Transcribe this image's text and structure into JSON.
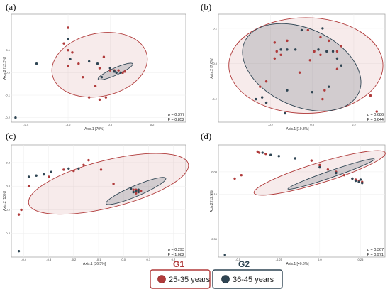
{
  "legend": {
    "g1": {
      "name": "G1",
      "label": "25-35 years",
      "color": "#b03a3a"
    },
    "g2": {
      "name": "G2",
      "label": "36-45 years",
      "color": "#2f4553"
    }
  },
  "chart_data": [
    {
      "type": "scatter",
      "panel": "(a)",
      "xlabel": "Axis.1  [70%]",
      "ylabel": "Axis.2  [12.2%]",
      "xlim": [
        -0.47,
        0.36
      ],
      "ylim": [
        -0.22,
        0.26
      ],
      "xticks": [
        "-0.4",
        "-0.2",
        "0.0",
        "0.2"
      ],
      "xtick_values": [
        -0.4,
        -0.2,
        0.0,
        0.2
      ],
      "yticks": [
        "0.1",
        "0.0",
        "-0.1",
        "-0.2"
      ],
      "ytick_values": [
        0.1,
        0.0,
        -0.1,
        -0.2
      ],
      "stats": [
        "p = 0.377",
        "F = 0.852"
      ],
      "ellipses": [
        {
          "group": "G1",
          "cx": -0.05,
          "cy": 0.035,
          "rx": 0.23,
          "ry": 0.14,
          "angle": 12
        },
        {
          "group": "G2",
          "cx": 0.025,
          "cy": 0.005,
          "rx": 0.09,
          "ry": 0.016,
          "angle": 24
        }
      ],
      "series": [
        {
          "name": "G1",
          "points": [
            [
              -0.2,
              0.2
            ],
            [
              -0.22,
              0.13
            ],
            [
              -0.18,
              0.09
            ],
            [
              -0.15,
              0.04
            ],
            [
              -0.2,
              0.03
            ],
            [
              -0.13,
              -0.02
            ],
            [
              -0.07,
              -0.06
            ],
            [
              -0.05,
              -0.12
            ],
            [
              -0.02,
              -0.11
            ],
            [
              -0.05,
              0.02
            ],
            [
              0.0,
              0.01
            ],
            [
              0.02,
              0.01
            ],
            [
              0.04,
              0.01
            ],
            [
              0.06,
              0.0
            ],
            [
              0.07,
              0.005
            ],
            [
              -0.1,
              -0.11
            ],
            [
              -0.03,
              0.07
            ],
            [
              -0.2,
              0.1
            ]
          ]
        },
        {
          "name": "G2",
          "points": [
            [
              -0.45,
              -0.2
            ],
            [
              -0.35,
              0.04
            ],
            [
              -0.2,
              0.15
            ],
            [
              -0.19,
              0.06
            ],
            [
              -0.1,
              0.05
            ],
            [
              -0.06,
              0.04
            ],
            [
              0.0,
              0.02
            ],
            [
              0.02,
              0.005
            ],
            [
              0.03,
              0.0
            ],
            [
              0.05,
              0.0
            ],
            [
              -0.04,
              -0.02
            ]
          ]
        }
      ]
    },
    {
      "type": "scatter",
      "panel": "(b)",
      "xlabel": "Axis.1  [19.8%]",
      "ylabel": "Axis.2  [7.6%]",
      "xlim": [
        -0.45,
        0.35
      ],
      "ylim": [
        -0.33,
        0.28
      ],
      "xticks": [
        "-0.2",
        "0.0",
        "0.2"
      ],
      "xtick_values": [
        -0.2,
        0.0,
        0.2
      ],
      "yticks": [
        "0.2",
        "0.0",
        "-0.2"
      ],
      "ytick_values": [
        0.2,
        0.0,
        -0.2
      ],
      "stats": [
        "p = 0.686",
        "F = 0.644"
      ],
      "ellipses": [
        {
          "group": "G1",
          "cx": -0.03,
          "cy": -0.01,
          "rx": 0.37,
          "ry": 0.27,
          "angle": 0
        },
        {
          "group": "G2",
          "cx": -0.05,
          "cy": -0.02,
          "rx": 0.3,
          "ry": 0.22,
          "angle": -24
        }
      ],
      "series": [
        {
          "name": "G1",
          "points": [
            [
              -0.02,
              0.19
            ],
            [
              0.04,
              0.15
            ],
            [
              0.08,
              0.13
            ],
            [
              -0.18,
              0.12
            ],
            [
              -0.12,
              0.13
            ],
            [
              0.12,
              0.07
            ],
            [
              -0.17,
              0.07
            ],
            [
              -0.15,
              0.05
            ],
            [
              -0.18,
              0.03
            ],
            [
              0.01,
              0.07
            ],
            [
              0.04,
              0.05
            ],
            [
              -0.01,
              0.02
            ],
            [
              0.12,
              -0.03
            ],
            [
              -0.22,
              -0.1
            ],
            [
              -0.25,
              -0.13
            ],
            [
              0.06,
              -0.15
            ],
            [
              0.05,
              -0.2
            ],
            [
              0.28,
              -0.18
            ],
            [
              0.31,
              -0.27
            ],
            [
              0.14,
              0.1
            ],
            [
              -0.06,
              -0.05
            ]
          ]
        },
        {
          "name": "G2",
          "points": [
            [
              -0.05,
              0.19
            ],
            [
              0.05,
              0.2
            ],
            [
              0.07,
              0.07
            ],
            [
              0.1,
              0.07
            ],
            [
              -0.12,
              0.08
            ],
            [
              -0.15,
              0.08
            ],
            [
              -0.08,
              0.08
            ],
            [
              0.03,
              0.08
            ],
            [
              0.12,
              0.03
            ],
            [
              -0.24,
              -0.19
            ],
            [
              -0.27,
              -0.2
            ],
            [
              -0.22,
              -0.22
            ],
            [
              -0.12,
              -0.15
            ],
            [
              0.0,
              -0.16
            ],
            [
              -0.13,
              -0.28
            ],
            [
              0.14,
              -0.01
            ],
            [
              0.08,
              -0.13
            ]
          ]
        }
      ]
    },
    {
      "type": "scatter",
      "panel": "(c)",
      "xlabel": "Axis.1  [36.5%]",
      "ylabel": "Axis.2  [10%]",
      "xlim": [
        -0.45,
        0.25
      ],
      "ylim": [
        -0.6,
        0.35
      ],
      "xticks": [
        "-0.4",
        "-0.3",
        "-0.2",
        "-0.1",
        "0.0",
        "0.1",
        "0.2"
      ],
      "xtick_values": [
        -0.4,
        -0.3,
        -0.2,
        -0.1,
        0.0,
        0.1,
        0.2
      ],
      "yticks": [
        "0.2",
        "0.0",
        "-0.2",
        "-0.4"
      ],
      "ytick_values": [
        0.2,
        0.0,
        -0.2,
        -0.4
      ],
      "stats": [
        "p = 0.293",
        "F = 1.082"
      ],
      "ellipses": [
        {
          "group": "G1",
          "cx": -0.06,
          "cy": 0.02,
          "rx": 0.33,
          "ry": 0.2,
          "angle": 14
        },
        {
          "group": "G2",
          "cx": 0.05,
          "cy": -0.04,
          "rx": 0.13,
          "ry": 0.045,
          "angle": 23
        }
      ],
      "series": [
        {
          "name": "G1",
          "points": [
            [
              -0.42,
              -0.24
            ],
            [
              -0.41,
              -0.2
            ],
            [
              -0.38,
              0.0
            ],
            [
              -0.3,
              0.08
            ],
            [
              -0.24,
              0.14
            ],
            [
              -0.2,
              0.13
            ],
            [
              -0.16,
              0.18
            ],
            [
              -0.14,
              0.22
            ],
            [
              -0.09,
              0.14
            ],
            [
              -0.04,
              0.02
            ],
            [
              0.04,
              -0.03
            ],
            [
              0.06,
              -0.04
            ],
            [
              0.05,
              -0.06
            ],
            [
              0.07,
              -0.04
            ],
            [
              0.05,
              -0.03
            ]
          ]
        },
        {
          "name": "G2",
          "points": [
            [
              -0.42,
              -0.55
            ],
            [
              -0.38,
              0.08
            ],
            [
              -0.35,
              0.09
            ],
            [
              -0.32,
              0.1
            ],
            [
              -0.29,
              0.12
            ],
            [
              -0.22,
              0.15
            ],
            [
              -0.18,
              0.15
            ],
            [
              0.03,
              -0.02
            ],
            [
              0.05,
              -0.04
            ],
            [
              0.06,
              -0.03
            ],
            [
              0.04,
              -0.05
            ],
            [
              0.06,
              -0.05
            ]
          ]
        }
      ]
    },
    {
      "type": "scatter",
      "panel": "(d)",
      "xlabel": "Axis.1  [40.6%]",
      "ylabel": "Axis.2  [12.5%]",
      "xlim": [
        -0.62,
        0.4
      ],
      "ylim": [
        -0.38,
        0.12
      ],
      "xticks": [
        "-0.5",
        "-0.25",
        "0.0",
        "0.25"
      ],
      "xtick_values": [
        -0.5,
        -0.25,
        0.0,
        0.25
      ],
      "yticks": [
        "0.00",
        "-0.10",
        "-0.30"
      ],
      "ytick_values": [
        0.0,
        -0.1,
        -0.3
      ],
      "stats": [
        "p = 0.367",
        "F = 0.971"
      ],
      "ellipses": [
        {
          "group": "G1",
          "cx": 0.0,
          "cy": -0.005,
          "rx": 0.42,
          "ry": 0.045,
          "angle": 17
        },
        {
          "group": "G2",
          "cx": 0.07,
          "cy": -0.01,
          "rx": 0.28,
          "ry": 0.015,
          "angle": 19
        }
      ],
      "series": [
        {
          "name": "G1",
          "points": [
            [
              -0.52,
              -0.03
            ],
            [
              -0.48,
              -0.015
            ],
            [
              -0.38,
              0.09
            ],
            [
              -0.37,
              0.085
            ],
            [
              -0.33,
              0.08
            ],
            [
              -0.05,
              0.05
            ],
            [
              0.0,
              0.03
            ],
            [
              0.05,
              0.01
            ],
            [
              0.1,
              0.0
            ],
            [
              0.15,
              -0.015
            ],
            [
              0.2,
              -0.03
            ],
            [
              0.22,
              -0.035
            ],
            [
              0.24,
              -0.04
            ],
            [
              0.26,
              -0.045
            ]
          ]
        },
        {
          "name": "G2",
          "points": [
            [
              -0.58,
              -0.37
            ],
            [
              -0.35,
              0.085
            ],
            [
              -0.3,
              0.075
            ],
            [
              -0.25,
              0.07
            ],
            [
              -0.15,
              0.06
            ],
            [
              0.0,
              0.02
            ],
            [
              0.1,
              -0.005
            ],
            [
              0.2,
              -0.03
            ],
            [
              0.22,
              -0.04
            ],
            [
              0.24,
              -0.045
            ],
            [
              0.26,
              -0.05
            ],
            [
              0.25,
              -0.035
            ]
          ]
        }
      ]
    }
  ]
}
